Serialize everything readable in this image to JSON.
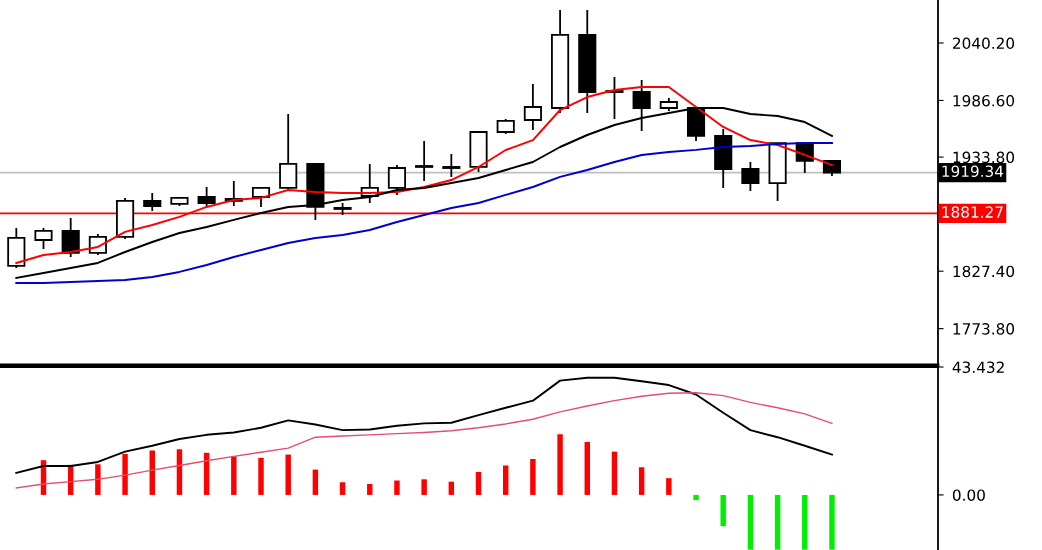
{
  "chart_data": [
    {
      "type": "candlestick",
      "categories": [
        null,
        null,
        null,
        null,
        null,
        null,
        null,
        null,
        null,
        null,
        null,
        null,
        null,
        null,
        null,
        null,
        null,
        null,
        null,
        null,
        null,
        null,
        null,
        null,
        null,
        null,
        null,
        null,
        null,
        null,
        null
      ],
      "ohlc": [
        [
          1832.3,
          1867.7,
          1830.4,
          1858.4
        ],
        [
          1856.5,
          1867.7,
          1848.1,
          1864.9
        ],
        [
          1864.9,
          1877.0,
          1840.6,
          1844.4
        ],
        [
          1844.4,
          1862.1,
          1842.5,
          1859.3
        ],
        [
          1859.3,
          1895.7,
          1857.4,
          1892.9
        ],
        [
          1892.9,
          1900.3,
          1883.5,
          1888.2
        ],
        [
          1890.1,
          1896.6,
          1888.2,
          1895.7
        ],
        [
          1896.6,
          1905.9,
          1887.3,
          1891.0
        ],
        [
          1892.9,
          1911.5,
          1888.2,
          1894.7
        ],
        [
          1896.6,
          1905.9,
          1887.3,
          1905.0
        ],
        [
          1905.0,
          1974.0,
          1904.1,
          1927.4
        ],
        [
          1927.4,
          1928.3,
          1875.2,
          1887.3
        ],
        [
          1885.4,
          1891.0,
          1879.8,
          1886.4
        ],
        [
          1897.5,
          1927.4,
          1891.0,
          1905.0
        ],
        [
          1905.0,
          1926.4,
          1898.5,
          1923.6
        ],
        [
          1924.6,
          1948.8,
          1911.5,
          1925.5
        ],
        [
          1923.6,
          1936.7,
          1915.3,
          1924.6
        ],
        [
          1924.6,
          1957.2,
          1919.9,
          1957.2
        ],
        [
          1957.2,
          1969.3,
          1955.3,
          1967.5
        ],
        [
          1968.4,
          2002.0,
          1959.1,
          1980.5
        ],
        [
          1979.6,
          2071.0,
          1974.9,
          2047.7
        ],
        [
          2047.7,
          2071.0,
          1974.9,
          1994.5
        ],
        [
          1995.4,
          2008.5,
          1969.3,
          1994.5
        ],
        [
          1994.5,
          2005.7,
          1958.1,
          1979.6
        ],
        [
          1979.6,
          1988.9,
          1976.7,
          1985.2
        ],
        [
          1979.6,
          1979.6,
          1948.8,
          1953.5
        ],
        [
          1953.5,
          1960.0,
          1905.0,
          1922.7
        ],
        [
          1922.7,
          1929.2,
          1902.2,
          1909.6
        ],
        [
          1909.6,
          1946.9,
          1892.9,
          1946.9
        ],
        [
          1946.9,
          1946.9,
          1919.0,
          1930.2
        ],
        [
          1930.2,
          1931.1,
          1916.2,
          1919.3
        ]
      ],
      "series": [
        {
          "type": "line",
          "color": "#ff0000",
          "values": [
            1835.1,
            1842.5,
            1845.3,
            1850.0,
            1864.0,
            1870.5,
            1878.0,
            1887.3,
            1893.8,
            1895.7,
            1903.1,
            1901.3,
            1900.3,
            1900.3,
            1901.3,
            1905.9,
            1912.4,
            1924.6,
            1940.4,
            1949.7,
            1977.7,
            1989.8,
            1996.4,
            1999.2,
            1999.2,
            1980.5,
            1961.9,
            1949.7,
            1945.1,
            1935.8,
            1926.4
          ]
        },
        {
          "type": "line",
          "color": "#000000",
          "values": [
            1821.1,
            1825.7,
            1830.4,
            1835.1,
            1845.3,
            1854.6,
            1863.0,
            1868.6,
            1875.2,
            1881.7,
            1887.3,
            1889.1,
            1893.8,
            1896.6,
            1903.1,
            1905.0,
            1909.6,
            1914.3,
            1921.8,
            1929.2,
            1943.2,
            1954.4,
            1963.7,
            1970.3,
            1974.9,
            1979.6,
            1979.6,
            1974.0,
            1972.1,
            1966.5,
            1953.5
          ]
        },
        {
          "type": "line",
          "color": "#0000cc",
          "values": [
            1816.4,
            1816.4,
            1817.3,
            1818.3,
            1819.2,
            1822.0,
            1826.7,
            1833.2,
            1840.6,
            1847.2,
            1853.7,
            1858.4,
            1861.2,
            1865.8,
            1873.3,
            1879.8,
            1886.3,
            1891.0,
            1898.5,
            1905.9,
            1915.3,
            1921.8,
            1929.2,
            1935.8,
            1938.6,
            1940.5,
            1943.2,
            1944.2,
            1946.0,
            1947.0,
            1947.0
          ]
        }
      ],
      "ylim": [
        1739.9,
        2080.3
      ],
      "yticks": [
        {
          "value": 2040.2,
          "label": "2040.20"
        },
        {
          "value": 1986.6,
          "label": "1986.60"
        },
        {
          "value": 1933.8,
          "label": "1933.80"
        },
        {
          "value": 1827.4,
          "label": "1827.40"
        },
        {
          "value": 1773.8,
          "label": "1773.80"
        }
      ],
      "ref_lines": [
        {
          "axis": "y",
          "value": 1919.34,
          "label": "1919.34",
          "color": "#c0c0c0"
        },
        {
          "axis": "y",
          "value": 1881.27,
          "label": "1881.27",
          "color": "#ff0000"
        }
      ],
      "grid": false,
      "legend": false
    },
    {
      "type": "bar",
      "categories": [
        null,
        null,
        null,
        null,
        null,
        null,
        null,
        null,
        null,
        null,
        null,
        null,
        null,
        null,
        null,
        null,
        null,
        null,
        null,
        null,
        null,
        null,
        null,
        null,
        null,
        null,
        null,
        null,
        null,
        null,
        null
      ],
      "series": [
        {
          "type": "bar",
          "values": [
            null,
            11.8,
            10.2,
            10.4,
            13.9,
            15.1,
            15.5,
            14.3,
            13.1,
            12.6,
            13.7,
            8.6,
            4.3,
            3.7,
            4.9,
            5.3,
            4.5,
            7.8,
            10.0,
            12.2,
            20.6,
            18.0,
            14.7,
            9.4,
            5.7,
            -1.8,
            -10.6,
            -18.6,
            -18.6,
            -18.6,
            -18.6
          ],
          "colors": [
            "#ff0000",
            "#ff0000",
            "#ff0000",
            "#ff0000",
            "#ff0000",
            "#ff0000",
            "#ff0000",
            "#ff0000",
            "#ff0000",
            "#ff0000",
            "#ff0000",
            "#ff0000",
            "#ff0000",
            "#ff0000",
            "#ff0000",
            "#ff0000",
            "#ff0000",
            "#ff0000",
            "#ff0000",
            "#ff0000",
            "#ff0000",
            "#ff0000",
            "#ff0000",
            "#ff0000",
            "#ff0000",
            "#00ee00",
            "#00ee00",
            "#00ee00",
            "#00ee00",
            "#00ee00",
            "#00ee00"
          ]
        },
        {
          "type": "line",
          "color": "#000000",
          "values": [
            7.5,
            9.8,
            9.8,
            11.2,
            14.7,
            16.7,
            19.0,
            20.4,
            21.2,
            22.8,
            25.3,
            23.9,
            22.0,
            22.2,
            23.5,
            24.3,
            24.5,
            27.1,
            29.6,
            32.0,
            38.8,
            39.8,
            39.8,
            38.6,
            37.3,
            34.1,
            27.9,
            22.0,
            19.6,
            16.7,
            13.7
          ]
        },
        {
          "type": "line",
          "color": "#e0506e",
          "values": [
            2.4,
            3.7,
            4.5,
            5.3,
            6.7,
            8.4,
            10.0,
            11.6,
            13.1,
            14.5,
            15.9,
            19.6,
            20.0,
            20.4,
            20.8,
            21.2,
            21.8,
            22.8,
            24.1,
            25.7,
            28.2,
            30.2,
            32.0,
            33.5,
            34.5,
            34.7,
            33.7,
            31.4,
            29.6,
            27.5,
            24.3
          ]
        }
      ],
      "ylim": [
        -18.7,
        43.432
      ],
      "yticks": [
        {
          "value": 43.432,
          "label": "43.432"
        },
        {
          "value": 0,
          "label": "0.00"
        }
      ],
      "grid": false,
      "legend": false
    }
  ]
}
